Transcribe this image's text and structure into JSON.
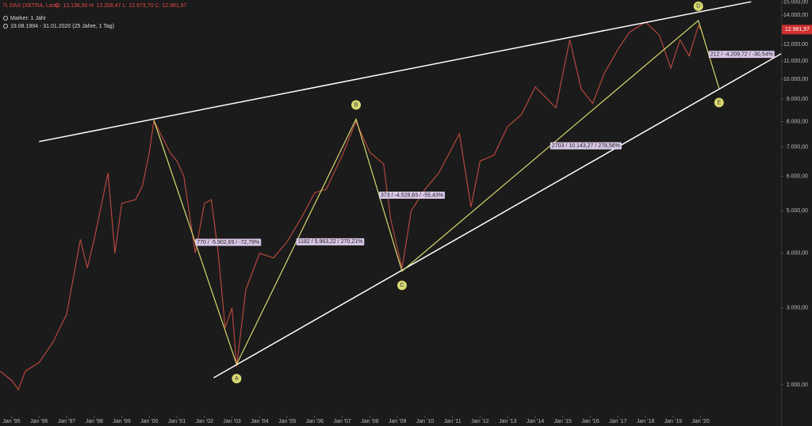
{
  "header": {
    "symbol": "DAX (XETRA, Last)",
    "ohlc": "O: 13.136,90  H: 13.208,47  L: 12.973,70  C: 12.981,97",
    "marker": "Marker: 1 Jahr",
    "range": "19.08.1994 - 31.01.2020  (25 Jahre, 1 Tag)"
  },
  "chart_data": {
    "type": "line",
    "log_scale": true,
    "color": "#b5473f",
    "x": [
      "1994-08",
      "1995-01",
      "1995-04",
      "1995-07",
      "1996-01",
      "1996-07",
      "1997-01",
      "1997-07",
      "1997-10",
      "1998-01",
      "1998-07",
      "1998-10",
      "1999-01",
      "1999-07",
      "1999-10",
      "2000-01",
      "2000-03",
      "2000-07",
      "2000-10",
      "2001-01",
      "2001-04",
      "2001-09",
      "2002-01",
      "2002-04",
      "2002-07",
      "2002-10",
      "2003-01",
      "2003-03",
      "2003-07",
      "2004-01",
      "2004-07",
      "2005-01",
      "2005-07",
      "2006-01",
      "2006-06",
      "2007-01",
      "2007-07",
      "2008-01",
      "2008-07",
      "2008-10",
      "2009-03",
      "2009-07",
      "2010-01",
      "2010-07",
      "2011-04",
      "2011-09",
      "2012-01",
      "2012-07",
      "2013-01",
      "2013-07",
      "2014-01",
      "2014-10",
      "2015-04",
      "2015-09",
      "2016-02",
      "2016-07",
      "2017-01",
      "2017-06",
      "2018-01",
      "2018-07",
      "2018-12",
      "2019-04",
      "2019-08",
      "2019-12",
      "2020-01"
    ],
    "values": [
      2150,
      2050,
      1950,
      2150,
      2250,
      2500,
      2900,
      4300,
      3700,
      4300,
      6100,
      4000,
      5200,
      5300,
      5700,
      6800,
      8050,
      7300,
      6800,
      6500,
      6000,
      4000,
      5200,
      5300,
      4000,
      2700,
      3000,
      2200,
      3300,
      4000,
      3900,
      4250,
      4800,
      5500,
      5600,
      6700,
      8000,
      6800,
      6400,
      4800,
      3700,
      5000,
      5600,
      6100,
      7500,
      5100,
      6500,
      6700,
      7800,
      8300,
      9600,
      8600,
      12300,
      9500,
      8800,
      10300,
      11700,
      12800,
      13500,
      12600,
      10600,
      12300,
      11300,
      13250,
      12981.97
    ],
    "last_label": "12.981,97",
    "xlim": [
      "1994-08",
      "2022-12"
    ],
    "xticks": [
      {
        "value": "1995-01",
        "label": "Jan '95"
      },
      {
        "value": "1996-01",
        "label": "Jan '96"
      },
      {
        "value": "1997-01",
        "label": "Jan '97"
      },
      {
        "value": "1998-01",
        "label": "Jan '98"
      },
      {
        "value": "1999-01",
        "label": "Jan '99"
      },
      {
        "value": "2000-01",
        "label": "Jan '00"
      },
      {
        "value": "2001-01",
        "label": "Jan '01"
      },
      {
        "value": "2002-01",
        "label": "Jan '02"
      },
      {
        "value": "2003-01",
        "label": "Jan '03"
      },
      {
        "value": "2004-01",
        "label": "Jan '04"
      },
      {
        "value": "2005-01",
        "label": "Jan '05"
      },
      {
        "value": "2006-01",
        "label": "Jan '06"
      },
      {
        "value": "2007-01",
        "label": "Jan '07"
      },
      {
        "value": "2008-01",
        "label": "Jan '08"
      },
      {
        "value": "2009-01",
        "label": "Jan '09"
      },
      {
        "value": "2010-01",
        "label": "Jan '10"
      },
      {
        "value": "2011-01",
        "label": "Jan '11"
      },
      {
        "value": "2012-01",
        "label": "Jan '12"
      },
      {
        "value": "2013-01",
        "label": "Jan '13"
      },
      {
        "value": "2014-01",
        "label": "Jan '14"
      },
      {
        "value": "2015-01",
        "label": "Jan '15"
      },
      {
        "value": "2016-01",
        "label": "Jan '16"
      },
      {
        "value": "2017-01",
        "label": "Jan '17"
      },
      {
        "value": "2018-01",
        "label": "Jan '18"
      },
      {
        "value": "2019-01",
        "label": "Jan '19"
      },
      {
        "value": "2020-01",
        "label": "Jan '20"
      }
    ],
    "ylim": [
      1700,
      15170
    ],
    "yticks": [
      {
        "value": 2000,
        "label": "2.000,00"
      },
      {
        "value": 3000,
        "label": "3.000,00"
      },
      {
        "value": 4000,
        "label": "4.000,00"
      },
      {
        "value": 5000,
        "label": "5.000,00"
      },
      {
        "value": 6000,
        "label": "6.000,00"
      },
      {
        "value": 7000,
        "label": "7.000,00"
      },
      {
        "value": 8000,
        "label": "8.000,00"
      },
      {
        "value": 9000,
        "label": "9.000,00"
      },
      {
        "value": 10000,
        "label": "10.000,00"
      },
      {
        "value": 11000,
        "label": "11.000,00"
      },
      {
        "value": 12000,
        "label": "12.000,00"
      },
      {
        "value": 14000,
        "label": "14.000,00"
      },
      {
        "value": 15000,
        "label": "15.000,00"
      }
    ],
    "trendlines": [
      {
        "x": [
          "1996-01",
          "2021-11"
        ],
        "values": [
          7200,
          15030
        ],
        "color": "#ffffff"
      },
      {
        "x": [
          "2002-05",
          "2022-12"
        ],
        "values": [
          2076,
          11430
        ],
        "color": "#ffffff"
      }
    ],
    "waves": {
      "x": [
        "2000-03",
        "2003-03",
        "2007-07",
        "2009-03",
        "2019-12",
        "2020-09"
      ],
      "values": [
        8050,
        2228,
        8100,
        3640,
        13620,
        9530
      ],
      "labels": [
        null,
        "A",
        "B",
        "C",
        "D",
        "E"
      ],
      "color": "#d8d870",
      "annotations": [
        "770 / -5.902,69 / -72,79%",
        "1182 / 5.963,22 / 270,21%",
        "373 / -4.528,83 / -55,43%",
        "2703 / 10.143,27 / 278,56%",
        "212 / -4.209,72 / -30,54%"
      ]
    }
  }
}
